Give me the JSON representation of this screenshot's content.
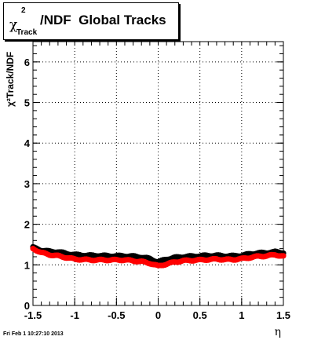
{
  "title": {
    "chi": "χ",
    "superscript": "2",
    "subscript": "Track",
    "main": "/NDF  Global Tracks"
  },
  "timestamp": "Fri Feb  1 10:27:10 2013",
  "chart_data": {
    "type": "scatter",
    "title": "χ²Track/NDF  Global Tracks",
    "xlabel": "η",
    "ylabel": "χ²Track/NDF",
    "xlim": [
      -1.5,
      1.5
    ],
    "ylim": [
      0,
      6.5
    ],
    "x_ticks": [
      "-1.5",
      "-1",
      "-0.5",
      "0",
      "0.5",
      "1",
      "1.5"
    ],
    "y_ticks": [
      "0",
      "1",
      "2",
      "3",
      "4",
      "5",
      "6"
    ],
    "grid": true,
    "series": [
      {
        "color": "#000000",
        "x": [
          -1.5,
          -1.4,
          -1.3,
          -1.2,
          -1.1,
          -1.0,
          -0.9,
          -0.8,
          -0.7,
          -0.6,
          -0.5,
          -0.4,
          -0.3,
          -0.2,
          -0.1,
          0.0,
          0.1,
          0.2,
          0.3,
          0.4,
          0.5,
          0.6,
          0.7,
          0.8,
          0.9,
          1.0,
          1.1,
          1.2,
          1.3,
          1.4,
          1.5
        ],
        "values": [
          1.43,
          1.36,
          1.33,
          1.32,
          1.28,
          1.25,
          1.24,
          1.23,
          1.23,
          1.22,
          1.22,
          1.22,
          1.21,
          1.19,
          1.15,
          1.07,
          1.14,
          1.18,
          1.2,
          1.21,
          1.22,
          1.23,
          1.23,
          1.22,
          1.22,
          1.23,
          1.27,
          1.29,
          1.3,
          1.32,
          1.3
        ]
      },
      {
        "color": "#ff0000",
        "x": [
          -1.5,
          -1.4,
          -1.3,
          -1.2,
          -1.1,
          -1.0,
          -0.9,
          -0.8,
          -0.7,
          -0.6,
          -0.5,
          -0.4,
          -0.3,
          -0.2,
          -0.1,
          0.0,
          0.1,
          0.2,
          0.3,
          0.4,
          0.5,
          0.6,
          0.7,
          0.8,
          0.9,
          1.0,
          1.1,
          1.2,
          1.3,
          1.4,
          1.5
        ],
        "values": [
          1.4,
          1.3,
          1.25,
          1.22,
          1.18,
          1.14,
          1.13,
          1.12,
          1.12,
          1.12,
          1.12,
          1.12,
          1.1,
          1.08,
          1.04,
          0.97,
          1.02,
          1.07,
          1.1,
          1.11,
          1.12,
          1.13,
          1.14,
          1.13,
          1.13,
          1.15,
          1.18,
          1.21,
          1.22,
          1.25,
          1.21
        ]
      }
    ]
  }
}
